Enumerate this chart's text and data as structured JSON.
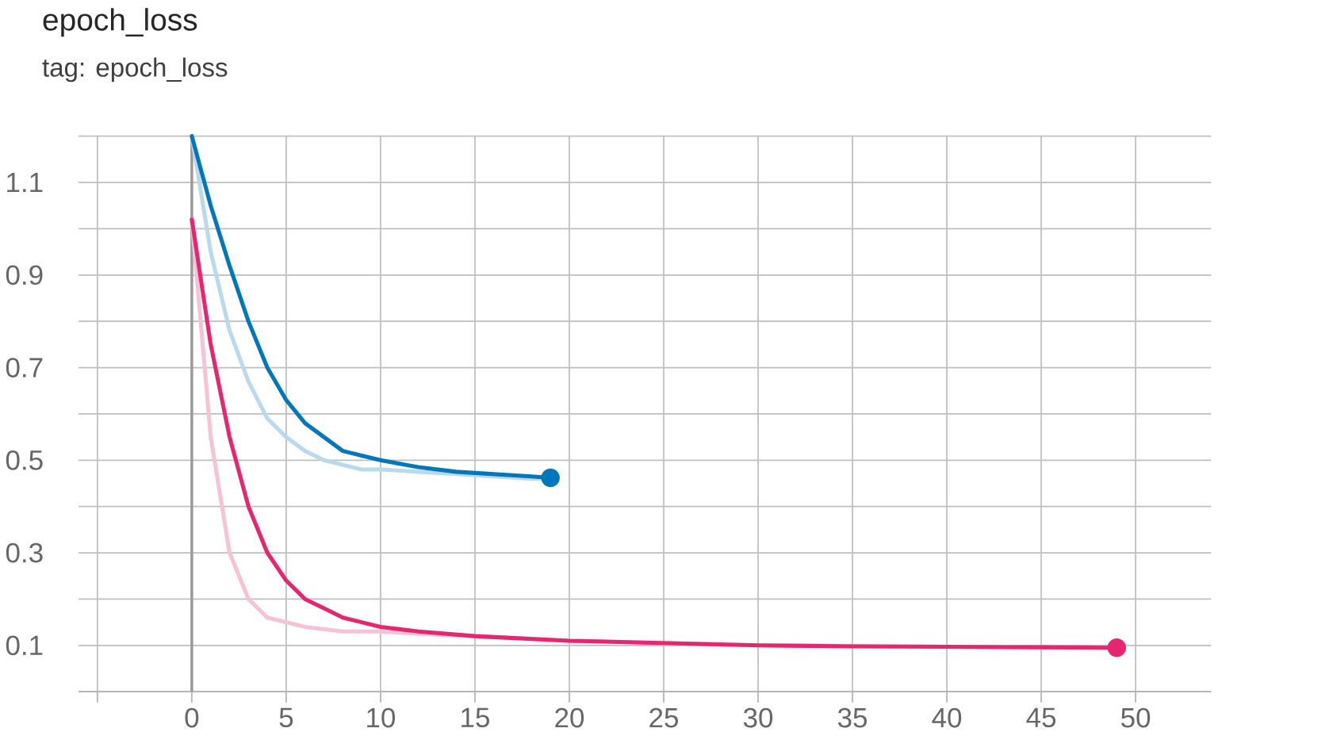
{
  "chart_data": {
    "type": "line",
    "title": "epoch_loss",
    "subtitle": "tag: epoch_loss",
    "series": [
      {
        "color": "#b8d9ee",
        "x": [
          0,
          1,
          2,
          3,
          4,
          5,
          6,
          7,
          8,
          9,
          10,
          12,
          14,
          16,
          18,
          19
        ],
        "values": [
          1.2,
          0.95,
          0.78,
          0.67,
          0.59,
          0.55,
          0.52,
          0.5,
          0.49,
          0.48,
          0.48,
          0.475,
          0.47,
          0.465,
          0.46,
          0.46
        ]
      },
      {
        "color": "#f6c3d6",
        "x": [
          0,
          1,
          2,
          3,
          4,
          5,
          6,
          7,
          8,
          10,
          12,
          15,
          20,
          30,
          40,
          49
        ],
        "values": [
          1.02,
          0.55,
          0.3,
          0.2,
          0.16,
          0.15,
          0.14,
          0.135,
          0.13,
          0.13,
          0.125,
          0.12,
          0.11,
          0.1,
          0.097,
          0.095
        ]
      },
      {
        "color": "#0077bb",
        "x": [
          0,
          1,
          2,
          3,
          4,
          5,
          6,
          7,
          8,
          9,
          10,
          12,
          14,
          16,
          18,
          19
        ],
        "values": [
          1.2,
          1.05,
          0.92,
          0.8,
          0.7,
          0.63,
          0.58,
          0.55,
          0.52,
          0.51,
          0.5,
          0.485,
          0.475,
          0.47,
          0.465,
          0.462
        ]
      },
      {
        "color": "#e7266f",
        "x": [
          0,
          1,
          2,
          3,
          4,
          5,
          6,
          7,
          8,
          9,
          10,
          12,
          15,
          20,
          25,
          30,
          35,
          40,
          45,
          49
        ],
        "values": [
          1.02,
          0.75,
          0.55,
          0.4,
          0.3,
          0.24,
          0.2,
          0.18,
          0.16,
          0.15,
          0.14,
          0.13,
          0.12,
          0.11,
          0.105,
          0.1,
          0.098,
          0.097,
          0.096,
          0.095
        ]
      }
    ],
    "xlim": [
      -6,
      54
    ],
    "ylim": [
      0,
      1.2
    ],
    "xticks": [
      {
        "value": -5,
        "label": null
      },
      0,
      5,
      10,
      15,
      20,
      25,
      30,
      35,
      40,
      45,
      50
    ],
    "yticks": [
      {
        "value": 0,
        "label": null
      },
      0.1,
      {
        "value": 0.2,
        "label": null
      },
      0.3,
      {
        "value": 0.4,
        "label": null
      },
      0.5,
      {
        "value": 0.6,
        "label": null
      },
      0.7,
      {
        "value": 0.8,
        "label": null
      },
      0.9,
      {
        "value": 1.0,
        "label": null
      },
      1.1,
      {
        "value": 1.2,
        "label": null
      }
    ],
    "ref_lines": [
      {
        "axis": "x",
        "value": 0,
        "color": "#9a9a9a"
      }
    ],
    "grid": true,
    "legend": false,
    "marker": "none",
    "line_style": "solid"
  }
}
